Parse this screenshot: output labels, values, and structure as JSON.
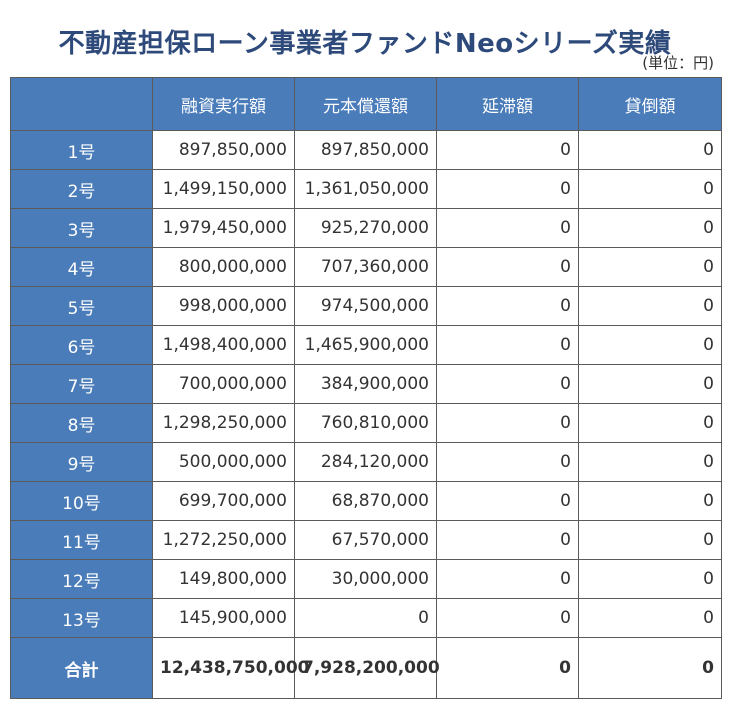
{
  "title": "不動産担保ローン事業者ファンドNeoシリーズ実績",
  "unit_note": "(単位：円)",
  "colors": {
    "header_bg": "#4a7cba",
    "title_text": "#2e4a7a",
    "border": "#5a5a5a"
  },
  "table": {
    "columns": [
      "",
      "融資実行額",
      "元本償還額",
      "延滞額",
      "貸倒額"
    ],
    "rows": [
      {
        "label": "1号",
        "values": [
          "897,850,000",
          "897,850,000",
          "0",
          "0"
        ]
      },
      {
        "label": "2号",
        "values": [
          "1,499,150,000",
          "1,361,050,000",
          "0",
          "0"
        ]
      },
      {
        "label": "3号",
        "values": [
          "1,979,450,000",
          "925,270,000",
          "0",
          "0"
        ]
      },
      {
        "label": "4号",
        "values": [
          "800,000,000",
          "707,360,000",
          "0",
          "0"
        ]
      },
      {
        "label": "5号",
        "values": [
          "998,000,000",
          "974,500,000",
          "0",
          "0"
        ]
      },
      {
        "label": "6号",
        "values": [
          "1,498,400,000",
          "1,465,900,000",
          "0",
          "0"
        ]
      },
      {
        "label": "7号",
        "values": [
          "700,000,000",
          "384,900,000",
          "0",
          "0"
        ]
      },
      {
        "label": "8号",
        "values": [
          "1,298,250,000",
          "760,810,000",
          "0",
          "0"
        ]
      },
      {
        "label": "9号",
        "values": [
          "500,000,000",
          "284,120,000",
          "0",
          "0"
        ]
      },
      {
        "label": "10号",
        "values": [
          "699,700,000",
          "68,870,000",
          "0",
          "0"
        ]
      },
      {
        "label": "11号",
        "values": [
          "1,272,250,000",
          "67,570,000",
          "0",
          "0"
        ]
      },
      {
        "label": "12号",
        "values": [
          "149,800,000",
          "30,000,000",
          "0",
          "0"
        ]
      },
      {
        "label": "13号",
        "values": [
          "145,900,000",
          "0",
          "0",
          "0"
        ]
      }
    ],
    "total": {
      "label": "合計",
      "values": [
        "12,438,750,000",
        "7,928,200,000",
        "0",
        "0"
      ]
    }
  }
}
